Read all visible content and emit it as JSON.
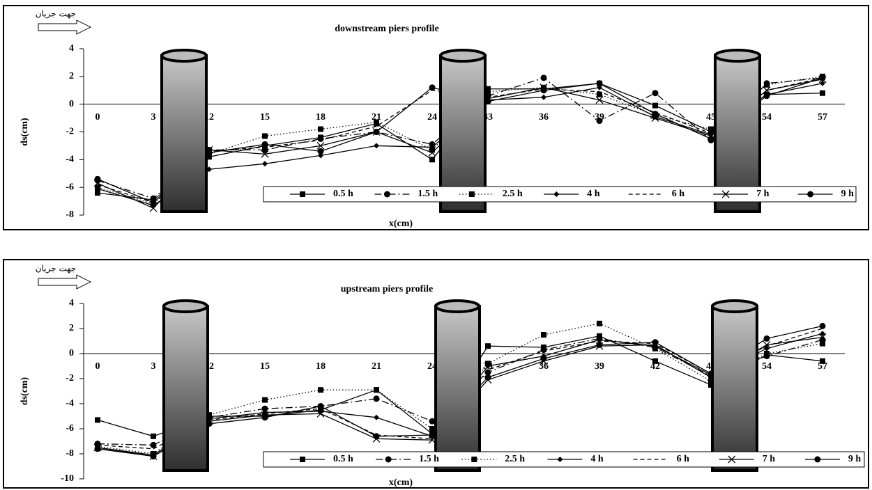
{
  "chart_data": [
    {
      "type": "line",
      "title": "downstream piers profile",
      "x_label": "x(cm)",
      "y_label": "ds(cm)",
      "annotation": "جهت جریان",
      "categories": [
        "0",
        "3",
        "12",
        "15",
        "18",
        "21",
        "24",
        "33",
        "36",
        "39",
        "42",
        "45",
        "54",
        "57"
      ],
      "ylim": [
        -8,
        4
      ],
      "yticks": [
        -8,
        -6,
        -4,
        -2,
        0,
        2,
        4
      ],
      "legend": "bottom-right",
      "series": [
        {
          "name": "0.5 h",
          "color": "#000000",
          "marker": "square",
          "line_style": "solid",
          "values": [
            -6.4,
            -6.9,
            -3.8,
            -3.0,
            -2.4,
            -1.4,
            -4.0,
            1.1,
            1.1,
            1.5,
            -0.1,
            -2.0,
            0.7,
            0.8
          ]
        },
        {
          "name": "1.5 h",
          "color": "#000000",
          "marker": "circle",
          "line_style": "dashdot",
          "values": [
            -5.5,
            -6.8,
            -3.3,
            -3.3,
            -2.5,
            -2.0,
            -2.9,
            0.6,
            1.9,
            -1.2,
            0.8,
            -2.6,
            1.5,
            1.9
          ]
        },
        {
          "name": "2.5 h",
          "color": "#000000",
          "marker": "square",
          "line_style": "dotted",
          "values": [
            -6.0,
            -7.2,
            -3.6,
            -2.3,
            -1.8,
            -1.3,
            -3.3,
            0.9,
            1.2,
            0.7,
            -0.8,
            -1.8,
            1.4,
            2.0
          ]
        },
        {
          "name": "4 h",
          "color": "#000000",
          "marker": "diamond",
          "line_style": "solid",
          "values": [
            -6.1,
            -7.3,
            -4.7,
            -4.3,
            -3.7,
            -3.0,
            -3.1,
            0.3,
            0.5,
            1.2,
            -0.9,
            -2.2,
            0.7,
            1.5
          ]
        },
        {
          "name": "6 h",
          "color": "#000000",
          "marker": "none",
          "line_style": "dashed",
          "values": [
            -5.8,
            -7.1,
            -3.4,
            -3.1,
            -2.6,
            -1.6,
            1.0,
            0.5,
            1.1,
            0.9,
            -0.6,
            -2.1,
            1.0,
            1.9
          ]
        },
        {
          "name": "7 h",
          "color": "#000000",
          "marker": "x",
          "line_style": "solid",
          "values": [
            -5.7,
            -7.5,
            -3.3,
            -3.6,
            -3.0,
            -2.0,
            -3.5,
            0.4,
            1.2,
            0.3,
            -1.0,
            -2.3,
            1.0,
            1.8
          ]
        },
        {
          "name": "9 h",
          "color": "#000000",
          "marker": "circle",
          "line_style": "solid",
          "values": [
            -5.4,
            -7.1,
            -3.5,
            -2.9,
            -3.4,
            -2.0,
            1.2,
            0.2,
            1.0,
            1.5,
            -0.7,
            -2.5,
            0.6,
            1.9
          ]
        }
      ]
    },
    {
      "type": "line",
      "title": "upstream piers profile",
      "x_label": "x(cm)",
      "y_label": "ds(cm)",
      "annotation": "جهت جریان",
      "categories": [
        "0",
        "3",
        "12",
        "15",
        "18",
        "21",
        "24",
        "33",
        "36",
        "39",
        "42",
        "45",
        "54",
        "57"
      ],
      "ylim": [
        -10,
        4
      ],
      "yticks": [
        -10,
        -8,
        -6,
        -4,
        -2,
        0,
        2,
        4
      ],
      "legend": "bottom-right",
      "series": [
        {
          "name": "0.5 h",
          "color": "#000000",
          "marker": "square",
          "line_style": "solid",
          "values": [
            -5.3,
            -6.6,
            -5.0,
            -5.0,
            -4.5,
            -2.9,
            -6.4,
            0.6,
            0.5,
            1.4,
            -0.6,
            -2.5,
            -0.1,
            -0.6
          ]
        },
        {
          "name": "1.5 h",
          "color": "#000000",
          "marker": "circle",
          "line_style": "dashdot",
          "values": [
            -7.2,
            -7.3,
            -5.1,
            -4.4,
            -4.2,
            -3.6,
            -5.4,
            -1.5,
            0.3,
            1.2,
            0.5,
            -1.8,
            -0.2,
            1.1
          ]
        },
        {
          "name": "2.5 h",
          "color": "#000000",
          "marker": "square",
          "line_style": "dotted",
          "values": [
            -7.4,
            -8.0,
            -4.9,
            -3.7,
            -2.9,
            -2.9,
            -6.0,
            -0.8,
            1.5,
            2.4,
            0.4,
            -2.2,
            0.0,
            0.8
          ]
        },
        {
          "name": "4 h",
          "color": "#000000",
          "marker": "diamond",
          "line_style": "solid",
          "values": [
            -7.5,
            -8.1,
            -5.2,
            -4.7,
            -4.6,
            -5.1,
            -6.6,
            -1.0,
            -0.2,
            1.1,
            0.6,
            -1.7,
            0.4,
            1.6
          ]
        },
        {
          "name": "6 h",
          "color": "#000000",
          "marker": "none",
          "line_style": "dashed",
          "values": [
            -7.3,
            -7.6,
            -5.3,
            -4.8,
            -4.4,
            -6.5,
            -6.8,
            -1.3,
            0.2,
            1.0,
            0.8,
            -1.6,
            0.6,
            2.0
          ]
        },
        {
          "name": "7 h",
          "color": "#000000",
          "marker": "x",
          "line_style": "solid",
          "values": [
            -7.5,
            -8.2,
            -5.4,
            -4.9,
            -4.8,
            -6.8,
            -6.9,
            -2.1,
            -0.6,
            0.6,
            0.7,
            -1.9,
            0.7,
            1.3
          ]
        },
        {
          "name": "9 h",
          "color": "#000000",
          "marker": "circle",
          "line_style": "solid",
          "values": [
            -7.6,
            -8.2,
            -5.6,
            -5.1,
            -4.2,
            -6.6,
            -6.5,
            -1.9,
            -0.4,
            0.7,
            0.9,
            -1.6,
            1.2,
            2.2
          ]
        }
      ]
    }
  ]
}
